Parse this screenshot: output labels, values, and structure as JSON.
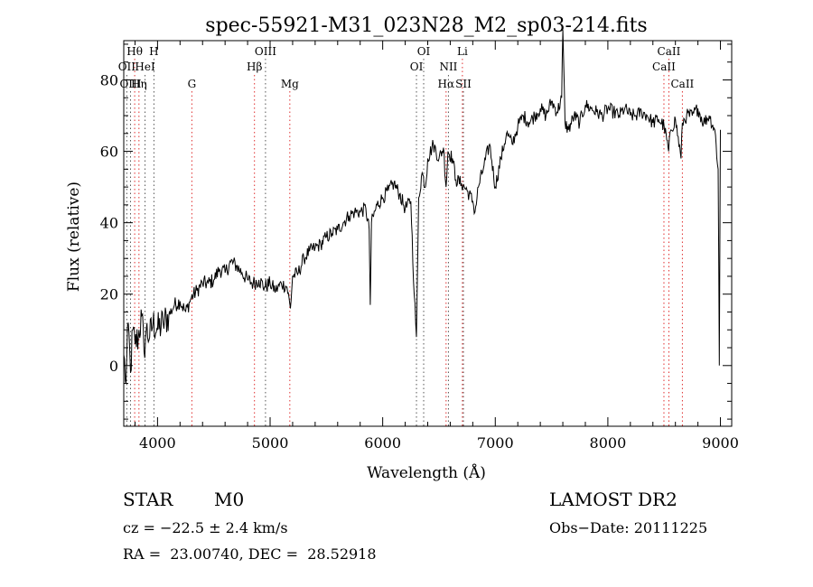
{
  "chart_data": {
    "type": "line",
    "title": "spec-55921-M31_023N28_M2_sp03-214.fits",
    "xlabel": "Wavelength (Å)",
    "ylabel": "Flux (relative)",
    "xlim": [
      3700,
      9100
    ],
    "ylim": [
      -17,
      91
    ],
    "x_ticks": [
      4000,
      5000,
      6000,
      7000,
      8000,
      9000
    ],
    "y_ticks": [
      0,
      20,
      40,
      60,
      80
    ],
    "series": [
      {
        "x": [
          3700,
          3720,
          3740,
          3760,
          3780,
          3800,
          3830,
          3860,
          3880,
          3900,
          3930,
          3960,
          4000,
          4050,
          4100,
          4150,
          4200,
          4250,
          4300,
          4350,
          4400,
          4450,
          4500,
          4550,
          4600,
          4650,
          4700,
          4750,
          4800,
          4850,
          4900,
          4950,
          5000,
          5050,
          5100,
          5150,
          5180,
          5200,
          5250,
          5300,
          5350,
          5400,
          5450,
          5500,
          5550,
          5600,
          5650,
          5700,
          5750,
          5800,
          5850,
          5880,
          5890,
          5900,
          5950,
          6000,
          6050,
          6100,
          6150,
          6200,
          6250,
          6280,
          6300,
          6320,
          6350,
          6380,
          6400,
          6450,
          6500,
          6540,
          6563,
          6580,
          6620,
          6650,
          6700,
          6750,
          6800,
          6820,
          6850,
          6900,
          6950,
          7000,
          7050,
          7100,
          7150,
          7200,
          7250,
          7300,
          7350,
          7400,
          7450,
          7500,
          7550,
          7590,
          7600,
          7620,
          7650,
          7700,
          7750,
          7800,
          7850,
          7900,
          7950,
          8000,
          8050,
          8100,
          8150,
          8200,
          8250,
          8300,
          8350,
          8400,
          8450,
          8500,
          8540,
          8560,
          8600,
          8650,
          8662,
          8700,
          8750,
          8800,
          8850,
          8900,
          8950,
          8980,
          8990,
          9000
        ],
        "y": [
          3,
          -5,
          12,
          -2,
          10,
          6,
          8,
          14,
          4,
          10,
          8,
          12,
          10,
          12,
          14,
          17,
          18,
          15,
          19,
          21,
          23,
          23,
          24,
          27,
          26,
          29,
          28,
          26,
          24,
          23,
          24,
          22,
          23,
          21,
          23,
          22,
          16,
          25,
          26,
          30,
          32,
          33,
          34,
          36,
          37,
          38,
          40,
          42,
          43,
          43,
          44,
          38,
          17,
          40,
          45,
          47,
          49,
          51,
          48,
          44,
          46,
          20,
          8,
          47,
          54,
          50,
          58,
          62,
          58,
          61,
          50,
          60,
          58,
          52,
          51,
          49,
          46,
          43,
          50,
          56,
          62,
          50,
          58,
          65,
          62,
          67,
          70,
          68,
          70,
          72,
          70,
          74,
          71,
          75,
          94,
          68,
          66,
          70,
          68,
          73,
          72,
          71,
          70,
          72,
          71,
          70,
          72,
          70,
          70,
          71,
          70,
          68,
          69,
          67,
          60,
          66,
          69,
          58,
          68,
          70,
          70,
          72,
          68,
          70,
          66,
          55,
          0,
          66
        ]
      }
    ],
    "lines": [
      {
        "label": "Hθ",
        "x": 3797,
        "row": 0,
        "color": "#e03030"
      },
      {
        "label": "H",
        "x": 3968,
        "row": 0,
        "color": "#555555"
      },
      {
        "label": "OII",
        "x": 3727,
        "row": 1,
        "color": "#555555"
      },
      {
        "label": "HeI",
        "x": 3889,
        "row": 1,
        "color": "#555555"
      },
      {
        "label": "OIII",
        "x": 3760,
        "row": 2,
        "color": "#555555"
      },
      {
        "label": "Hη",
        "x": 3835,
        "row": 2,
        "color": "#e03030"
      },
      {
        "label": "G",
        "x": 4305,
        "row": 2,
        "color": "#e03030"
      },
      {
        "label": "OIII",
        "x": 4959,
        "row": 0,
        "color": "#555555"
      },
      {
        "label": "Hβ",
        "x": 4861,
        "row": 1,
        "color": "#e03030"
      },
      {
        "label": "Mg",
        "x": 5175,
        "row": 2,
        "color": "#e03030"
      },
      {
        "label": "OI",
        "x": 6364,
        "row": 0,
        "color": "#555555"
      },
      {
        "label": "OI",
        "x": 6300,
        "row": 1,
        "color": "#555555"
      },
      {
        "label": "NII",
        "x": 6584,
        "row": 1,
        "color": "#555555"
      },
      {
        "label": "Hα",
        "x": 6563,
        "row": 2,
        "color": "#e03030"
      },
      {
        "label": "SII",
        "x": 6717,
        "row": 2,
        "color": "#555555"
      },
      {
        "label": "Li",
        "x": 6708,
        "row": 0,
        "color": "#e03030"
      },
      {
        "label": "CaII",
        "x": 8542,
        "row": 0,
        "color": "#e03030"
      },
      {
        "label": "CaII",
        "x": 8498,
        "row": 1,
        "color": "#e03030"
      },
      {
        "label": "CaII",
        "x": 8662,
        "row": 2,
        "color": "#e03030"
      }
    ]
  },
  "info": {
    "class_label": "STAR",
    "subclass": "M0",
    "survey": "LAMOST DR2",
    "velocity": "cz = −22.5 ± 2.4 km/s",
    "obs_date": "Obs−Date: 20111225",
    "coords": "RA =  23.00740, DEC =  28.52918"
  },
  "style": {
    "line_color": "#000000",
    "grid_line_red": "#e03030",
    "grid_line_gray": "#555555"
  }
}
